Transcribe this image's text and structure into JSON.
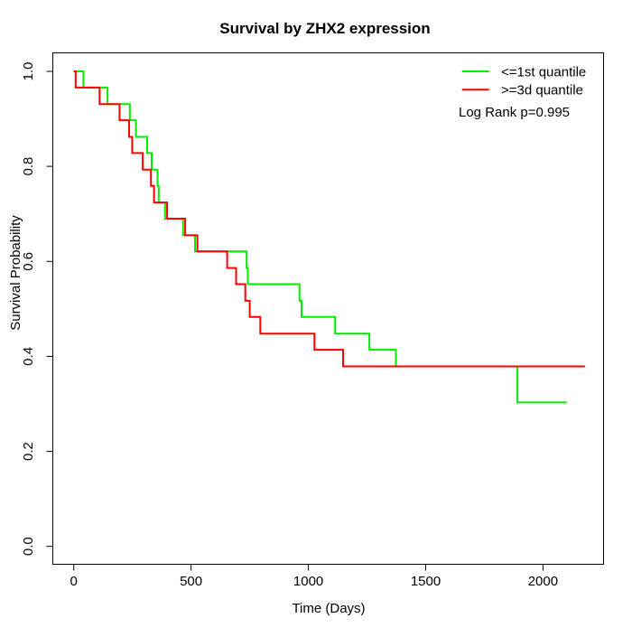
{
  "title": "Survival by ZHX2 expression",
  "x_axis": {
    "label": "Time (Days)",
    "ticks": [
      "0",
      "500",
      "1000",
      "1500",
      "2000"
    ]
  },
  "y_axis": {
    "label": "Survival Probability",
    "ticks": [
      "0.0",
      "0.2",
      "0.4",
      "0.6",
      "0.8",
      "1.0"
    ]
  },
  "legend": {
    "items": [
      {
        "label": "<=1st quantile",
        "color": "#00ee00"
      },
      {
        "label": ">=3d quantile",
        "color": "#ff0000"
      }
    ],
    "note": "Log Rank p=0.995"
  },
  "chart_data": {
    "type": "line",
    "subtype": "kaplan_meier_step",
    "title": "Survival by ZHX2 expression",
    "xlabel": "Time (Days)",
    "ylabel": "Survival Probability",
    "xlim": [
      0,
      2200
    ],
    "ylim": [
      0.0,
      1.0
    ],
    "x_ticks": [
      0,
      500,
      1000,
      1500,
      2000
    ],
    "y_ticks": [
      0.0,
      0.2,
      0.4,
      0.6,
      0.8,
      1.0
    ],
    "grid": false,
    "legend_position": "top-right",
    "annotation": "Log Rank p=0.995",
    "series": [
      {
        "name": "<=1st quantile",
        "color": "#00ee00",
        "start": {
          "time": 0,
          "prob": 1.0
        },
        "end_time": 2101,
        "steps": [
          [
            41,
            0.966
          ],
          [
            144,
            0.931
          ],
          [
            239,
            0.897
          ],
          [
            265,
            0.862
          ],
          [
            313,
            0.828
          ],
          [
            332,
            0.793
          ],
          [
            357,
            0.759
          ],
          [
            362,
            0.724
          ],
          [
            389,
            0.69
          ],
          [
            466,
            0.655
          ],
          [
            517,
            0.621
          ],
          [
            737,
            0.586
          ],
          [
            742,
            0.552
          ],
          [
            962,
            0.517
          ],
          [
            971,
            0.483
          ],
          [
            1114,
            0.448
          ],
          [
            1260,
            0.414
          ],
          [
            1373,
            0.379
          ],
          [
            1891,
            0.303
          ]
        ]
      },
      {
        "name": ">=3d quantile",
        "color": "#ff0000",
        "start": {
          "time": 0,
          "prob": 1.0
        },
        "end_time": 2179,
        "steps": [
          [
            8,
            0.966
          ],
          [
            110,
            0.931
          ],
          [
            195,
            0.897
          ],
          [
            236,
            0.862
          ],
          [
            249,
            0.828
          ],
          [
            294,
            0.793
          ],
          [
            329,
            0.759
          ],
          [
            342,
            0.724
          ],
          [
            398,
            0.69
          ],
          [
            475,
            0.655
          ],
          [
            527,
            0.621
          ],
          [
            654,
            0.586
          ],
          [
            692,
            0.552
          ],
          [
            731,
            0.517
          ],
          [
            750,
            0.483
          ],
          [
            795,
            0.448
          ],
          [
            1026,
            0.414
          ],
          [
            1148,
            0.379
          ]
        ]
      }
    ]
  }
}
